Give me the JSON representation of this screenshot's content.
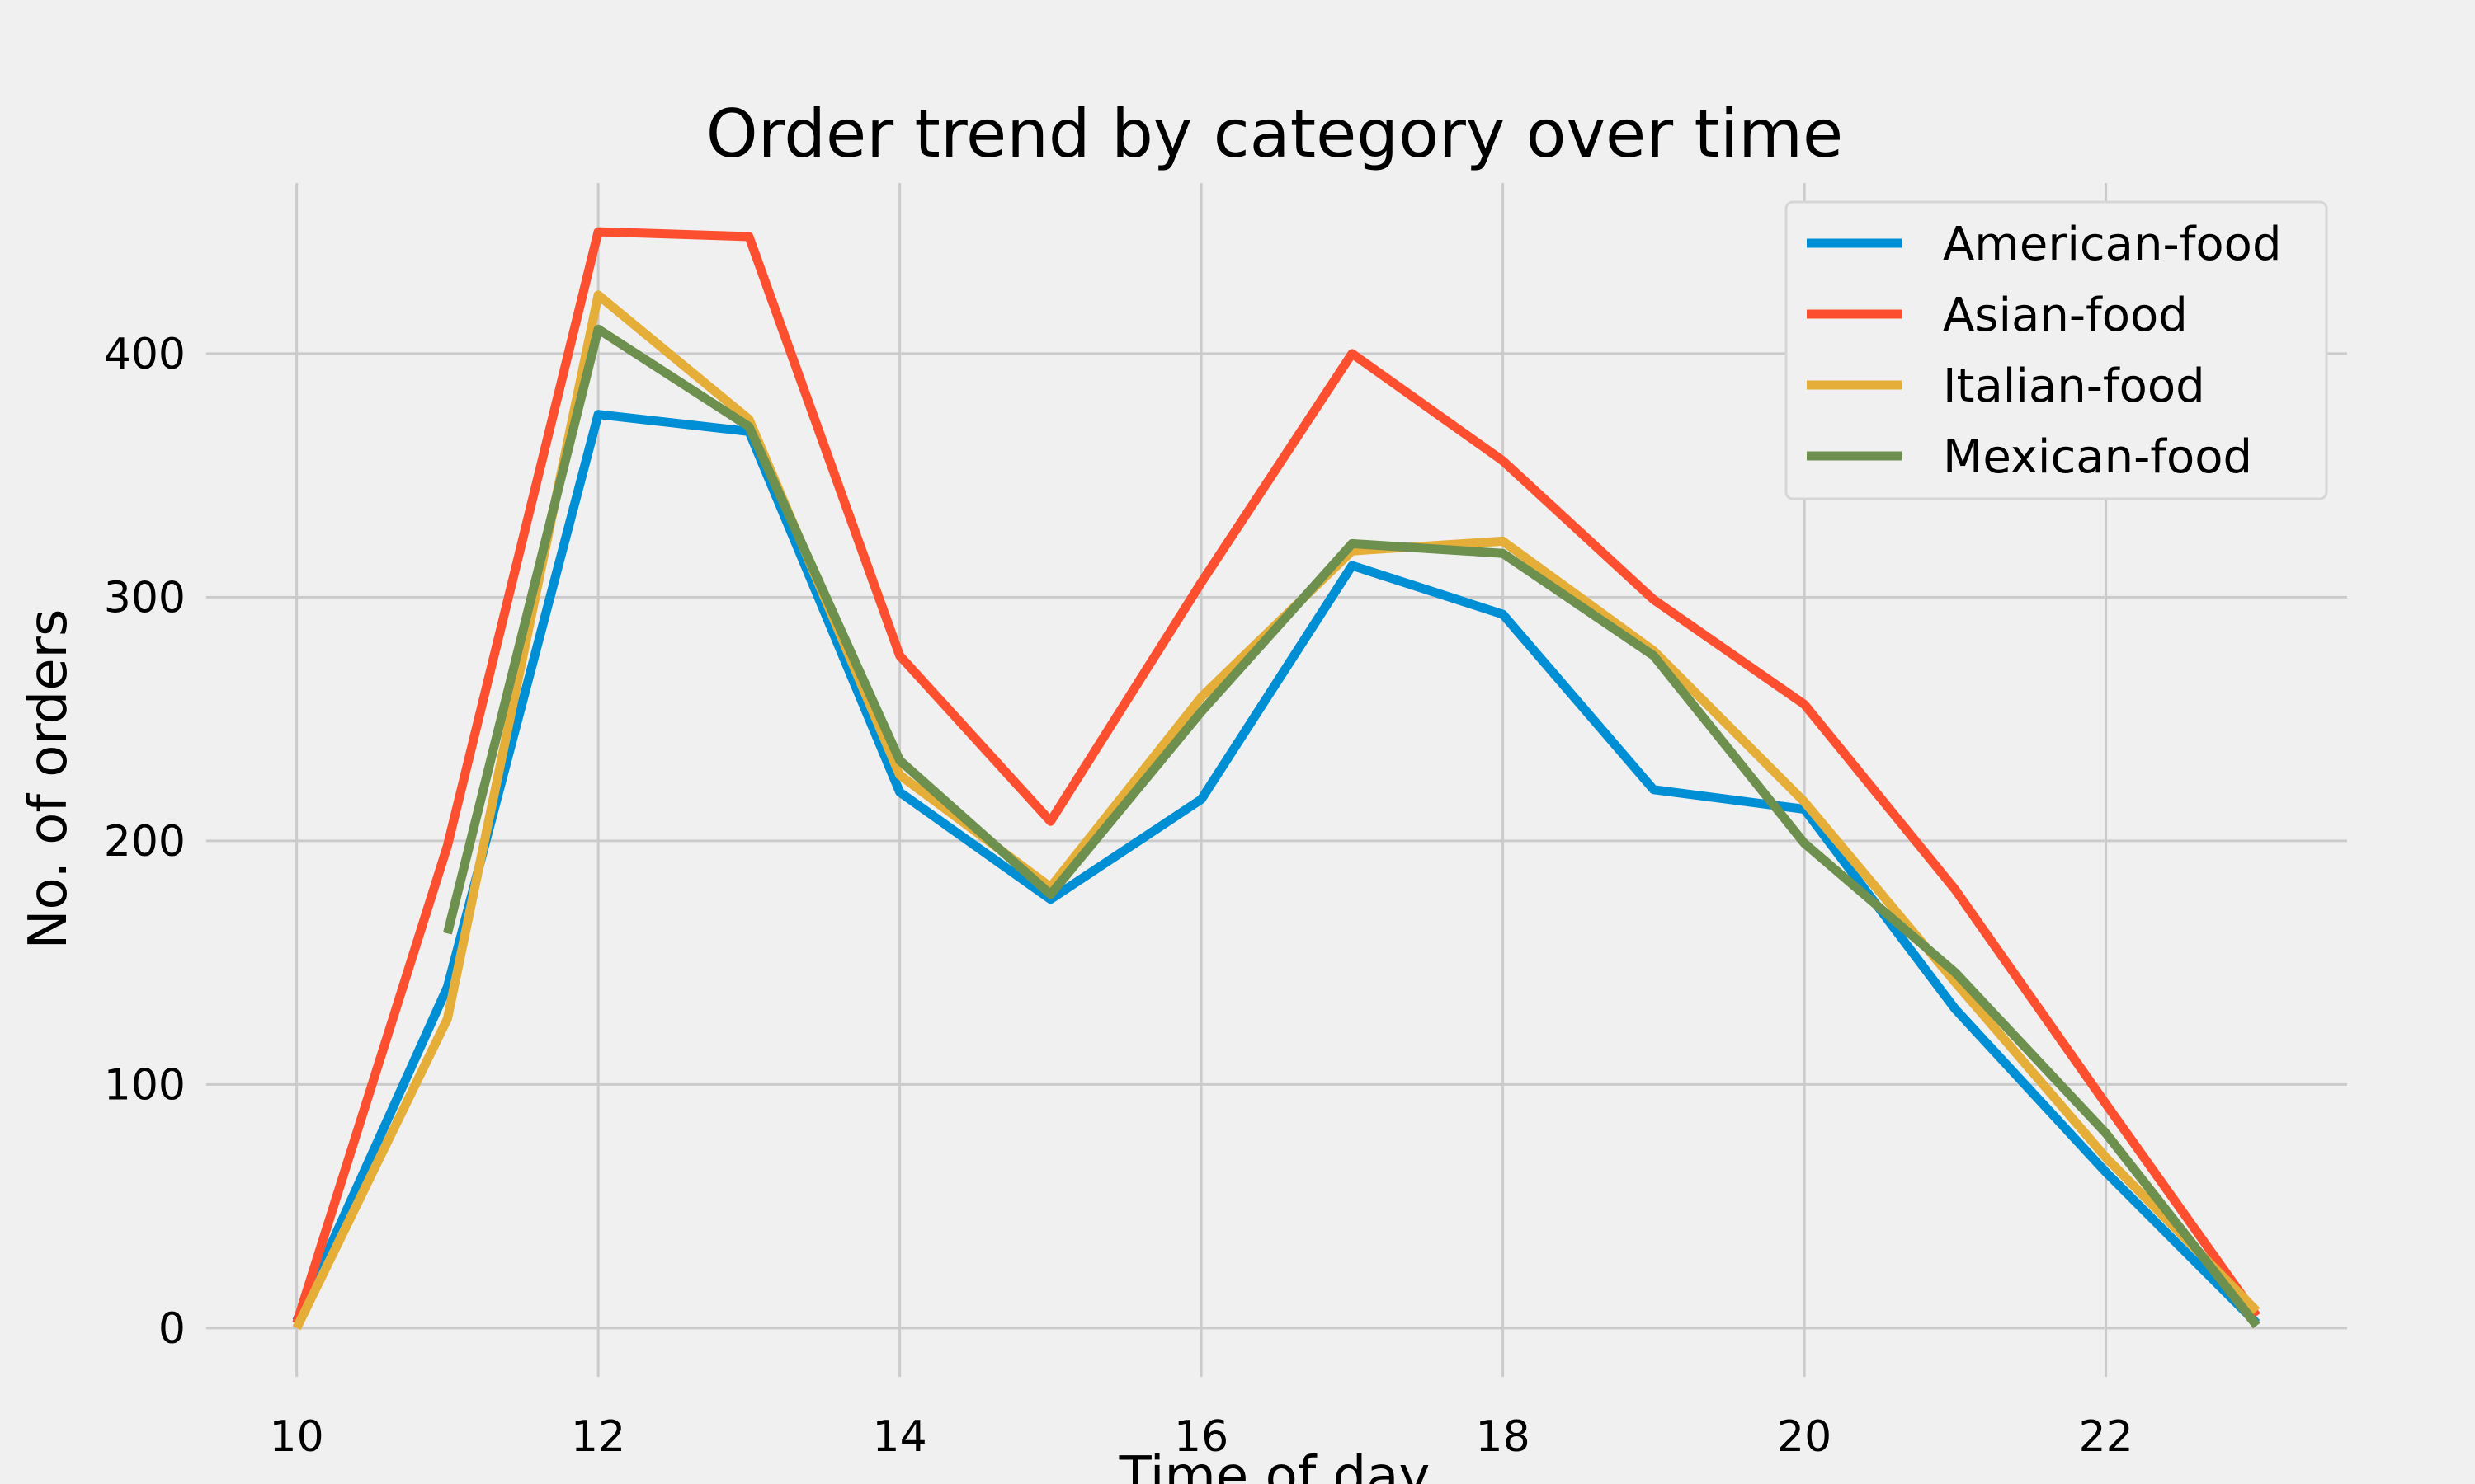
{
  "chart_data": {
    "type": "line",
    "title": "Order trend by category over time",
    "xlabel": "Time of day",
    "ylabel": "No. of orders",
    "xlim": [
      9.4,
      23.6
    ],
    "ylim": [
      -20,
      470
    ],
    "xticks": [
      10,
      12,
      14,
      16,
      18,
      20,
      22
    ],
    "yticks": [
      0,
      100,
      200,
      300,
      400
    ],
    "grid": true,
    "legend_position": "top-right",
    "series": [
      {
        "name": "American-food",
        "color": "#008fd5",
        "x": [
          10,
          11,
          12,
          13,
          14,
          15,
          16,
          17,
          18,
          19,
          20,
          21,
          22,
          23
        ],
        "y": [
          3,
          140,
          375,
          368,
          220,
          176,
          217,
          313,
          293,
          221,
          213,
          131,
          64,
          2
        ]
      },
      {
        "name": "Asian-food",
        "color": "#fc4f30",
        "x": [
          10,
          11,
          12,
          13,
          14,
          15,
          16,
          17,
          18,
          19,
          20,
          21,
          22,
          23
        ],
        "y": [
          2,
          198,
          450,
          448,
          276,
          208,
          306,
          400,
          356,
          299,
          256,
          180,
          92,
          5
        ]
      },
      {
        "name": "Italian-food",
        "color": "#e5ae38",
        "x": [
          10,
          11,
          12,
          13,
          14,
          15,
          16,
          17,
          18,
          19,
          20,
          21,
          22,
          23
        ],
        "y": [
          0,
          127,
          424,
          373,
          227,
          181,
          259,
          319,
          323,
          278,
          216,
          142,
          70,
          7
        ]
      },
      {
        "name": "Mexican-food",
        "color": "#6d904f",
        "x": [
          11,
          12,
          13,
          14,
          15,
          16,
          17,
          18,
          19,
          20,
          21,
          22,
          23
        ],
        "y": [
          162,
          410,
          370,
          233,
          178,
          253,
          322,
          318,
          276,
          199,
          146,
          80,
          1
        ]
      }
    ]
  }
}
